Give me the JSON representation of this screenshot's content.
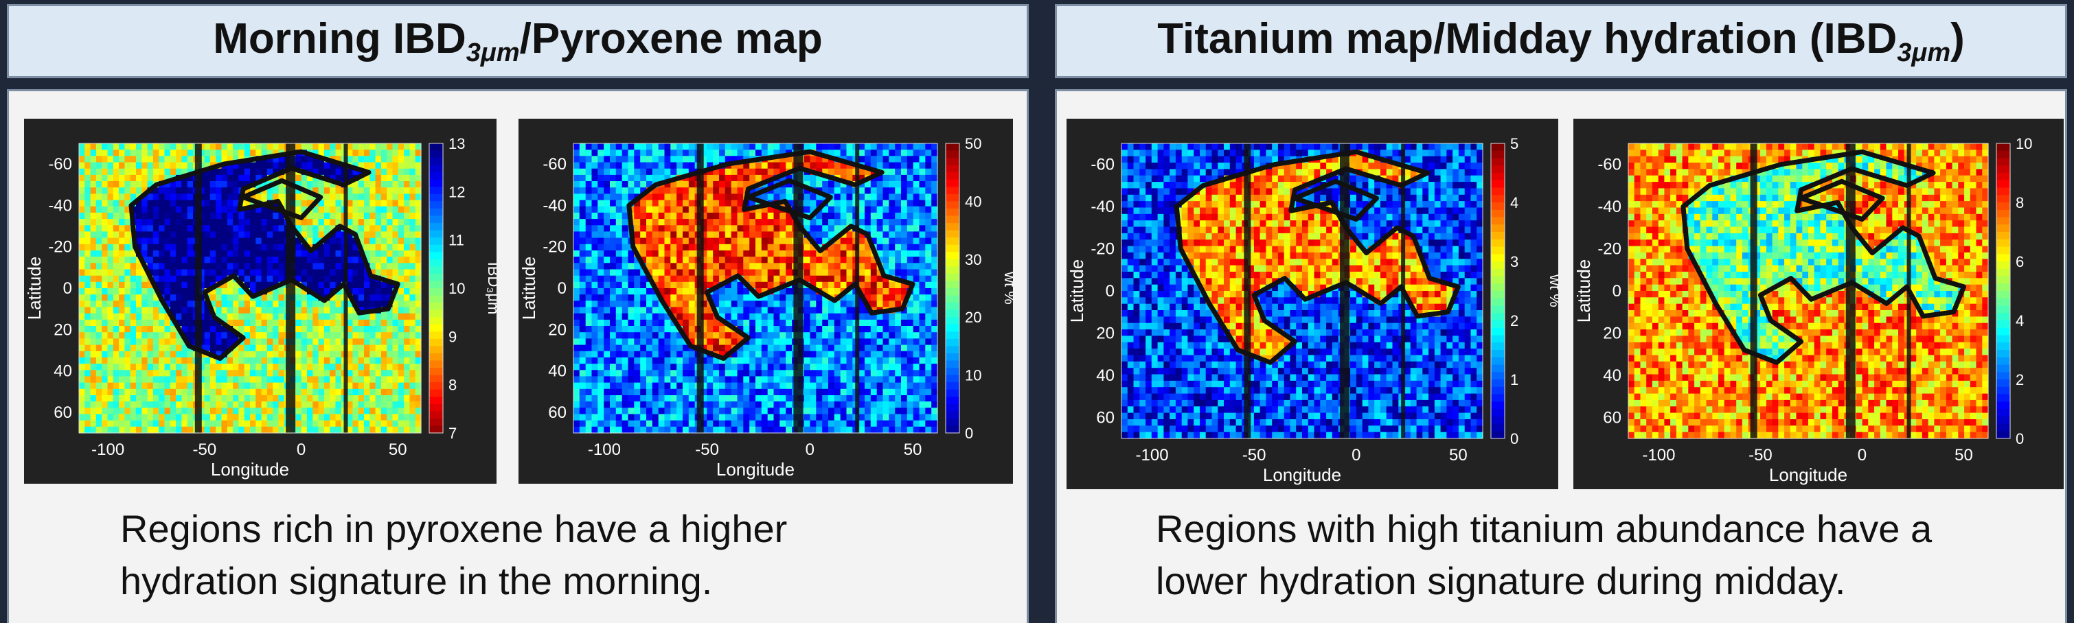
{
  "panels": [
    {
      "title_pre": "Morning IBD",
      "title_sub": "3μm",
      "title_post": "/Pyroxene map",
      "caption_lines": [
        "Regions rich in pyroxene have a higher",
        "hydration signature in the morning."
      ],
      "maps": [
        {
          "name": "morning-ibd-map",
          "colorbar_label": "IBD₃μm",
          "colorbar_ticks": [
            "13",
            "12",
            "11",
            "10",
            "9",
            "8",
            "7"
          ],
          "colormap": "jet_reverse",
          "base": 0.45
        },
        {
          "name": "pyroxene-map",
          "colorbar_label": "wt %",
          "colorbar_ticks": [
            "50",
            "40",
            "30",
            "20",
            "10",
            "0"
          ],
          "colormap": "jet",
          "base": 0.25
        }
      ]
    },
    {
      "title_pre": "Titanium map/Midday hydration (IBD",
      "title_sub": "3μm",
      "title_post": ")",
      "caption_lines": [
        "Regions with high titanium abundance have a",
        "lower hydration signature during midday."
      ],
      "maps": [
        {
          "name": "titanium-map",
          "colorbar_label": "wt %",
          "colorbar_ticks": [
            "5",
            "4",
            "3",
            "2",
            "1",
            "0"
          ],
          "colormap": "jet",
          "base": 0.18
        },
        {
          "name": "midday-ibd-map",
          "colorbar_label": "",
          "colorbar_ticks": [
            "10",
            "8",
            "6",
            "4",
            "2",
            "0"
          ],
          "colormap": "jet",
          "base": 0.72
        }
      ]
    }
  ],
  "axes": {
    "xlabel": "Longitude",
    "ylabel": "Latitude",
    "xticks": [
      "-100",
      "-50",
      "0",
      "50"
    ],
    "yticks": [
      "-60",
      "-40",
      "-20",
      "0",
      "20",
      "40",
      "60"
    ]
  }
}
